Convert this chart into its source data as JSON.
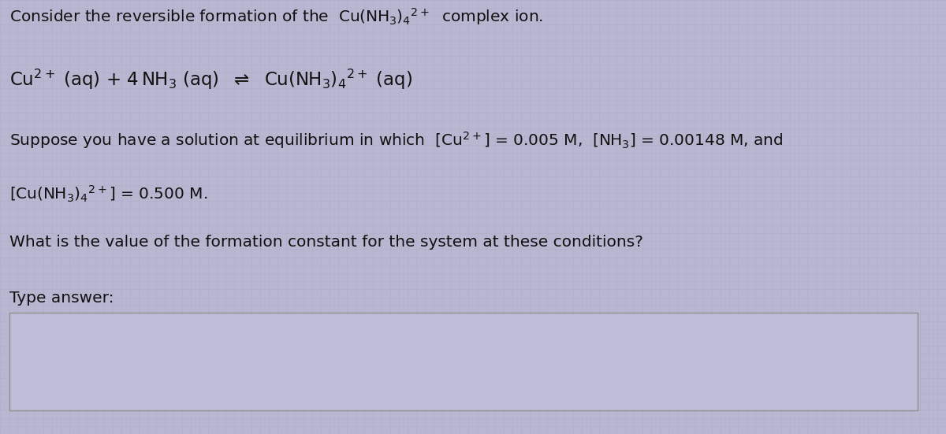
{
  "background_color": "#b8b6d0",
  "grid_color": "#a8a6c0",
  "text_color": "#111111",
  "box_border_color": "#909090",
  "box_fill_color": "#c0bdd8",
  "line1": "Consider the reversible formation of the  Cu(NH$_3$)$_4$$^{2+}$  complex ion.",
  "line2": "Cu$^{2+}$ (aq) + 4 NH$_3$ (aq)  $\\rightleftharpoons$  Cu(NH$_3$)$_4$$^{2+}$ (aq)",
  "line3": "Suppose you have a solution at equilibrium in which  [Cu$^{2+}$] = 0.005 M,  [NH$_3$] = 0.00148 M, and",
  "line4": "[Cu(NH$_3$)$_4$$^{2+}$] = 0.500 M.",
  "line5": "What is the value of the formation constant for the system at these conditions?",
  "line6": "Type answer:",
  "fig_width": 12.0,
  "fig_height": 5.51,
  "dpi": 100,
  "fs_main": 14.5,
  "fs_eq": 16.5
}
